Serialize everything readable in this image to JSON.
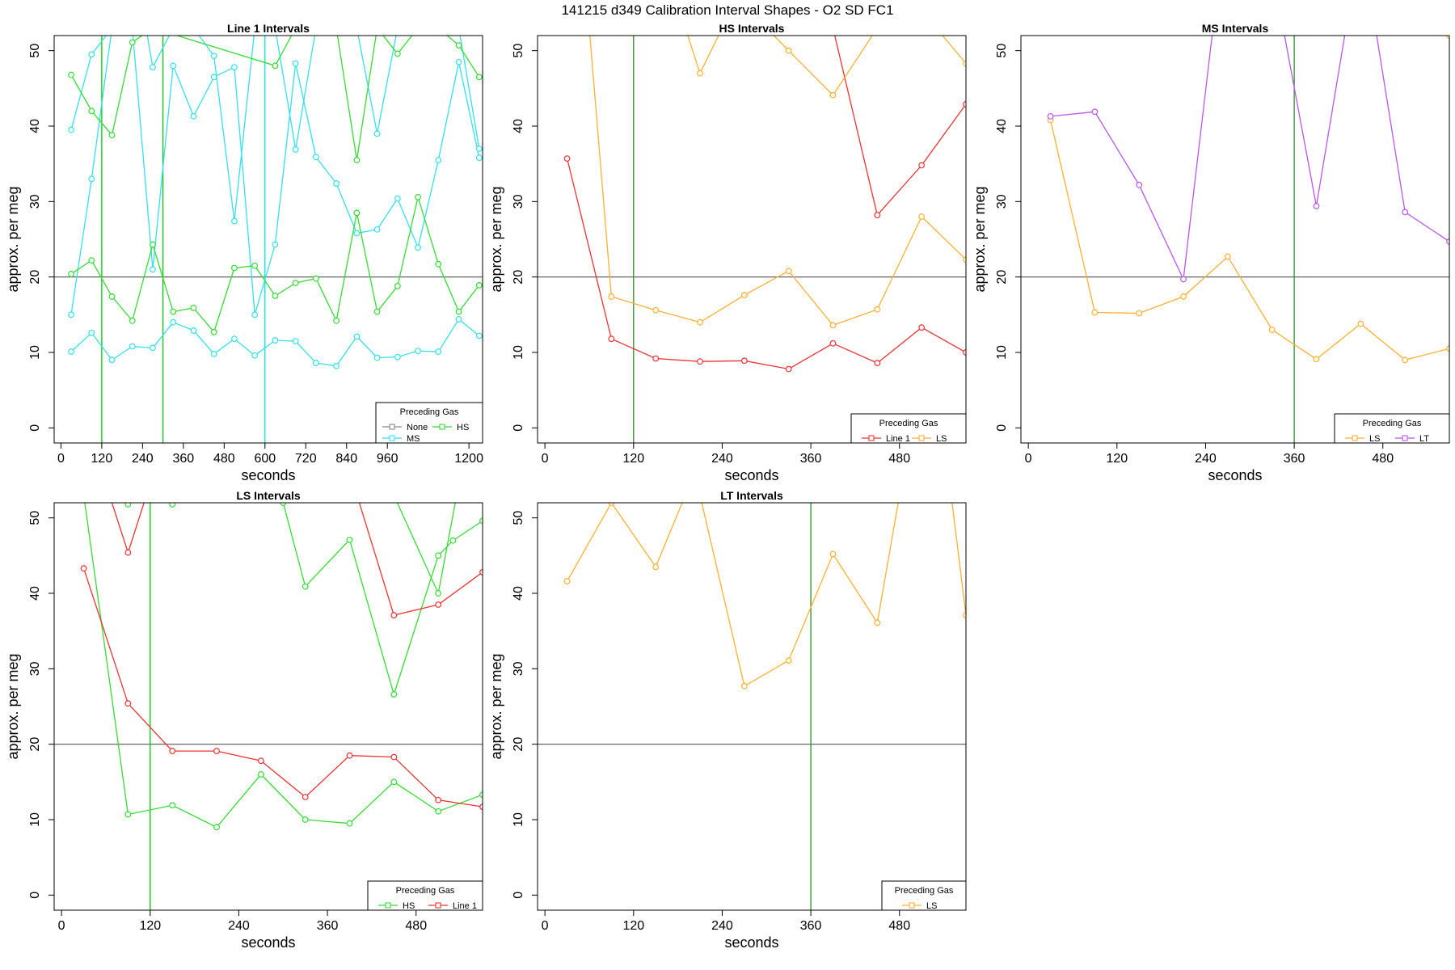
{
  "figure_title": "141215   d349   Calibration Interval Shapes - O2 SD FC1",
  "chart_data": [
    {
      "type": "line",
      "title": "Line 1 Intervals",
      "xlabel": "seconds",
      "ylabel": "approx. per meg",
      "xlim": [
        -20,
        1240
      ],
      "ylim": [
        -2,
        52
      ],
      "x_ticks": [
        0,
        120,
        240,
        360,
        480,
        600,
        720,
        840,
        960,
        1200
      ],
      "y_ticks": [
        0,
        10,
        20,
        30,
        40,
        50
      ],
      "hline": 20,
      "vlines": [
        {
          "x": 120,
          "color": "#00cc00"
        },
        {
          "x": 300,
          "color": "#00cc00"
        },
        {
          "x": 600,
          "color": "#00e5ee"
        }
      ],
      "legend": {
        "title": "Preceding Gas",
        "position": "bottom-right",
        "entries": [
          {
            "label": "None",
            "color": "#888888"
          },
          {
            "label": "HS",
            "color": "#33dd33"
          },
          {
            "label": "MS",
            "color": "#33e0ee"
          }
        ]
      },
      "series": [
        {
          "name": "MS",
          "color": "#33e0ee",
          "x": [
            30,
            90,
            150,
            210,
            270,
            330,
            390,
            450,
            510,
            570,
            630,
            690,
            750,
            810,
            870,
            930,
            990,
            1050,
            1110,
            1170,
            1230
          ],
          "y": [
            10.1,
            12.6,
            9.0,
            10.8,
            10.6,
            14.0,
            12.9,
            9.8,
            11.8,
            9.6,
            11.6,
            11.5,
            8.6,
            8.2,
            12.1,
            9.3,
            9.4,
            10.2,
            10.1,
            14.4,
            12.2
          ]
        },
        {
          "name": "MS",
          "color": "#33e0ee",
          "x": [
            30,
            90,
            150,
            210,
            270,
            330,
            390,
            450,
            510,
            570,
            630,
            690,
            750,
            810,
            870,
            930,
            990,
            1050,
            1110,
            1170,
            1230
          ],
          "y": [
            15.0,
            33.0,
            53,
            53,
            21.0,
            48.0,
            41.3,
            46.5,
            47.8,
            15.0,
            24.3,
            48.3,
            35.9,
            32.4,
            25.8,
            26.3,
            30.4,
            23.9,
            35.5,
            48.5,
            35.8
          ]
        },
        {
          "name": "MS",
          "color": "#33e0ee",
          "x": [
            30,
            90,
            150,
            210,
            250,
            270,
            330,
            390,
            450,
            510,
            570,
            630,
            690,
            750,
            810,
            870,
            930,
            990,
            1050,
            1110,
            1170,
            1230
          ],
          "y": [
            39.5,
            49.5,
            53,
            53,
            53,
            47.8,
            53,
            53,
            49.3,
            27.4,
            53,
            53,
            36.9,
            53,
            53,
            53,
            39.0,
            53,
            53,
            53,
            53,
            37.0
          ]
        },
        {
          "name": "HS",
          "color": "#33dd33",
          "x": [
            30,
            90,
            150,
            210,
            270,
            330,
            390,
            450,
            510,
            570,
            630,
            690,
            750,
            810,
            870,
            930,
            990,
            1050,
            1110,
            1170,
            1230
          ],
          "y": [
            20.4,
            22.2,
            17.4,
            14.2,
            24.3,
            15.4,
            15.9,
            12.7,
            21.2,
            21.5,
            17.5,
            19.2,
            19.8,
            14.2,
            28.5,
            15.4,
            18.8,
            30.6,
            21.7,
            15.4,
            18.9
          ]
        },
        {
          "name": "HS",
          "color": "#33dd33",
          "x": [
            30,
            90,
            150,
            210,
            270,
            630,
            690,
            810,
            870,
            930,
            990,
            1050,
            1110,
            1170,
            1230
          ],
          "y": [
            46.8,
            42.0,
            38.8,
            51.1,
            53,
            48.0,
            53,
            53,
            35.5,
            53,
            49.6,
            53,
            53,
            50.7,
            46.5
          ]
        }
      ]
    },
    {
      "type": "line",
      "title": "HS Intervals",
      "xlabel": "seconds",
      "ylabel": "approx. per meg",
      "xlim": [
        -10,
        570
      ],
      "ylim": [
        -2,
        52
      ],
      "x_ticks": [
        0,
        120,
        240,
        360,
        480
      ],
      "y_ticks": [
        0,
        10,
        20,
        30,
        40,
        50
      ],
      "hline": 20,
      "vlines": [
        {
          "x": 120,
          "color": "#2e8b2e"
        }
      ],
      "legend": {
        "title": "Preceding Gas",
        "position": "bottom-right",
        "entries": [
          {
            "label": "Line 1",
            "color": "#ee3333"
          },
          {
            "label": "LS",
            "color": "#ffb030"
          }
        ]
      },
      "series": [
        {
          "name": "Line 1",
          "color": "#ee3333",
          "x": [
            30,
            90,
            150,
            210,
            270,
            330,
            390,
            450,
            510,
            570
          ],
          "y": [
            35.7,
            11.8,
            9.2,
            8.8,
            8.9,
            7.8,
            11.2,
            8.6,
            13.3,
            10.0
          ]
        },
        {
          "name": "Line 1",
          "color": "#ee3333",
          "x": [
            390,
            450,
            510,
            570
          ],
          "y": [
            53,
            28.2,
            34.8,
            42.9
          ]
        },
        {
          "name": "LS",
          "color": "#ffb030",
          "x": [
            60,
            90,
            150,
            210,
            270,
            330,
            390,
            450,
            510,
            570
          ],
          "y": [
            53,
            17.4,
            15.6,
            14.0,
            17.6,
            20.8,
            13.6,
            15.7,
            28.0,
            22.3
          ]
        },
        {
          "name": "LS",
          "color": "#ffb030",
          "x": [
            190,
            210,
            240,
            300,
            330,
            390,
            450,
            530,
            570
          ],
          "y": [
            53,
            47.0,
            53,
            53,
            50.0,
            44.1,
            53,
            53,
            48.3
          ]
        }
      ]
    },
    {
      "type": "line",
      "title": "MS Intervals",
      "xlabel": "seconds",
      "ylabel": "approx. per meg",
      "xlim": [
        -10,
        570
      ],
      "ylim": [
        -2,
        52
      ],
      "x_ticks": [
        0,
        120,
        240,
        360,
        480
      ],
      "y_ticks": [
        0,
        10,
        20,
        30,
        40,
        50
      ],
      "hline": 20,
      "vlines": [
        {
          "x": 360,
          "color": "#2e8b2e"
        }
      ],
      "legend": {
        "title": "Preceding Gas",
        "position": "bottom-right",
        "entries": [
          {
            "label": "LS",
            "color": "#ffb030"
          },
          {
            "label": "LT",
            "color": "#bb55ee"
          }
        ]
      },
      "series": [
        {
          "name": "LS",
          "color": "#ffb030",
          "x": [
            30,
            90,
            150,
            210,
            270,
            330,
            390,
            450,
            510,
            570
          ],
          "y": [
            40.8,
            15.3,
            15.2,
            17.4,
            22.7,
            13.0,
            9.1,
            13.8,
            9.0,
            10.5
          ]
        },
        {
          "name": "LS",
          "color": "#ffb030",
          "x": [
            570
          ],
          "y": [
            52.0
          ]
        },
        {
          "name": "LT",
          "color": "#bb55ee",
          "x": [
            30,
            90,
            150,
            210,
            250,
            345,
            390,
            430,
            470,
            510,
            570
          ],
          "y": [
            41.3,
            41.9,
            32.2,
            19.7,
            53,
            53,
            29.4,
            53,
            53,
            28.6,
            24.7
          ]
        }
      ]
    },
    {
      "type": "line",
      "title": "LS Intervals",
      "xlabel": "seconds",
      "ylabel": "approx. per meg",
      "xlim": [
        -10,
        570
      ],
      "ylim": [
        -2,
        52
      ],
      "x_ticks": [
        0,
        120,
        240,
        360,
        480
      ],
      "y_ticks": [
        0,
        10,
        20,
        30,
        40,
        50
      ],
      "hline": 20,
      "vlines": [
        {
          "x": 120,
          "color": "#00cc00"
        }
      ],
      "legend": {
        "title": "Preceding Gas",
        "position": "bottom-right",
        "entries": [
          {
            "label": "HS",
            "color": "#33dd33"
          },
          {
            "label": "Line 1",
            "color": "#ee3333"
          }
        ]
      },
      "series": [
        {
          "name": "HS",
          "color": "#33dd33",
          "x": [
            30,
            90,
            150,
            210,
            270,
            330,
            390,
            450,
            510,
            570
          ],
          "y": [
            53,
            10.7,
            11.9,
            9.0,
            16.0,
            10.0,
            9.5,
            15.0,
            11.1,
            13.3
          ]
        },
        {
          "name": "HS",
          "color": "#33dd33",
          "x": [
            85,
            90,
            100,
            145,
            150,
            160,
            280,
            300,
            330,
            390,
            450,
            510,
            530,
            570
          ],
          "y": [
            53,
            51.8,
            53,
            53,
            51.8,
            53,
            53,
            52.0,
            40.9,
            47.1,
            26.6,
            45.0,
            47.0,
            49.6
          ]
        },
        {
          "name": "HS",
          "color": "#33dd33",
          "x": [
            450,
            510,
            535
          ],
          "y": [
            53,
            40.0,
            53
          ]
        },
        {
          "name": "Line 1",
          "color": "#ee3333",
          "x": [
            30,
            90,
            150,
            210,
            270,
            330,
            390,
            450,
            510,
            570
          ],
          "y": [
            43.3,
            25.4,
            19.1,
            19.1,
            17.8,
            13.0,
            18.5,
            18.3,
            12.6,
            11.7
          ]
        },
        {
          "name": "Line 1",
          "color": "#ee3333",
          "x": [
            65,
            90,
            115,
            400,
            450,
            510,
            570
          ],
          "y": [
            53,
            45.4,
            53,
            53,
            37.1,
            38.5,
            42.8
          ]
        }
      ]
    },
    {
      "type": "line",
      "title": "LT Intervals",
      "xlabel": "seconds",
      "ylabel": "approx. per meg",
      "xlim": [
        -10,
        570
      ],
      "ylim": [
        -2,
        52
      ],
      "x_ticks": [
        0,
        120,
        240,
        360,
        480
      ],
      "y_ticks": [
        0,
        10,
        20,
        30,
        40,
        50
      ],
      "hline": 20,
      "vlines": [
        {
          "x": 360,
          "color": "#2e8b2e"
        }
      ],
      "legend": {
        "title": "Preceding Gas",
        "position": "bottom-right",
        "entries": [
          {
            "label": "LS",
            "color": "#ffb030"
          }
        ]
      },
      "series": [
        {
          "name": "LS",
          "color": "#ffb030",
          "x": [
            30,
            90,
            150,
            190,
            210,
            270,
            330,
            390,
            450,
            480,
            550,
            570
          ],
          "y": [
            41.6,
            52.0,
            43.5,
            53,
            53,
            27.7,
            31.1,
            45.2,
            36.1,
            53,
            53,
            37.1
          ]
        }
      ]
    }
  ]
}
